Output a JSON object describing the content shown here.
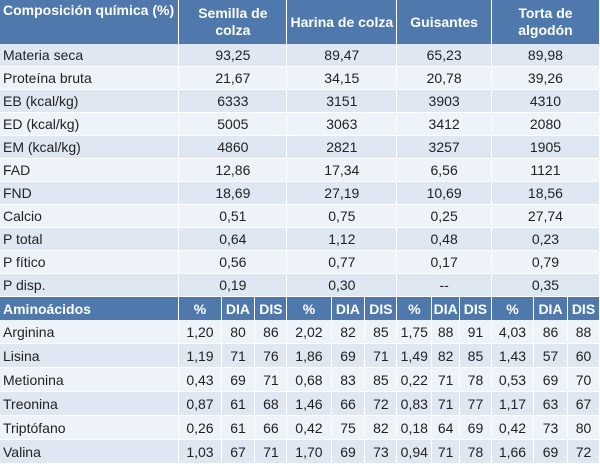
{
  "header": {
    "composition": "Composición química (%)",
    "columns": [
      "Semilla de colza",
      "Harina de colza",
      "Guisantes",
      "Torta de algodón"
    ]
  },
  "composition_rows": [
    {
      "label": "Materia seca",
      "values": [
        "93,25",
        "89,47",
        "65,23",
        "89,98"
      ]
    },
    {
      "label": "Proteína bruta",
      "values": [
        "21,67",
        "34,15",
        "20,78",
        "39,26"
      ]
    },
    {
      "label": "EB (kcal/kg)",
      "values": [
        "6333",
        "3151",
        "3903",
        "4310"
      ]
    },
    {
      "label": "ED (kcal/kg)",
      "values": [
        "5005",
        "3063",
        "3412",
        "2080"
      ]
    },
    {
      "label": "EM (kcal/kg)",
      "values": [
        "4860",
        "2821",
        "3257",
        "1905"
      ]
    },
    {
      "label": "FAD",
      "values": [
        "12,86",
        "17,34",
        "6,56",
        "1121"
      ]
    },
    {
      "label": "FND",
      "values": [
        "18,69",
        "27,19",
        "10,69",
        "18,56"
      ]
    },
    {
      "label": "Calcio",
      "values": [
        "0,51",
        "0,75",
        "0,25",
        "27,74"
      ]
    },
    {
      "label": "P total",
      "values": [
        "0,64",
        "1,12",
        "0,48",
        "0,23"
      ]
    },
    {
      "label": "P fítico",
      "values": [
        "0,56",
        "0,77",
        "0,17",
        "0,79"
      ]
    },
    {
      "label": "P disp.",
      "values": [
        "0,19",
        "0,30",
        "--",
        "0,35"
      ]
    }
  ],
  "amino_header": {
    "label": "Aminoácidos",
    "sub": [
      "%",
      "DIA",
      "DIS",
      "%",
      "DIA",
      "DIS",
      "%",
      "DIA",
      "DIS",
      "%",
      "DIA",
      "DIS"
    ]
  },
  "amino_rows": [
    {
      "label": "Arginina",
      "values": [
        "1,20",
        "80",
        "86",
        "2,02",
        "82",
        "85",
        "1,75",
        "88",
        "91",
        "4,03",
        "86",
        "88"
      ]
    },
    {
      "label": "Lisina",
      "values": [
        "1,19",
        "71",
        "76",
        "1,86",
        "69",
        "71",
        "1,49",
        "82",
        "85",
        "1,43",
        "57",
        "60"
      ]
    },
    {
      "label": "Metionina",
      "values": [
        "0,43",
        "69",
        "71",
        "0,68",
        "83",
        "85",
        "0,22",
        "71",
        "78",
        "0,53",
        "69",
        "70"
      ]
    },
    {
      "label": "Treonina",
      "values": [
        "0,87",
        "61",
        "68",
        "1,46",
        "66",
        "72",
        "0,83",
        "71",
        "77",
        "1,17",
        "63",
        "67"
      ]
    },
    {
      "label": "Triptófano",
      "values": [
        "0,26",
        "61",
        "66",
        "0,42",
        "75",
        "82",
        "0,18",
        "64",
        "69",
        "0,42",
        "73",
        "80"
      ]
    },
    {
      "label": "Valina",
      "values": [
        "1,03",
        "67",
        "71",
        "1,70",
        "69",
        "73",
        "0,94",
        "71",
        "78",
        "1,66",
        "69",
        "72"
      ]
    }
  ]
}
